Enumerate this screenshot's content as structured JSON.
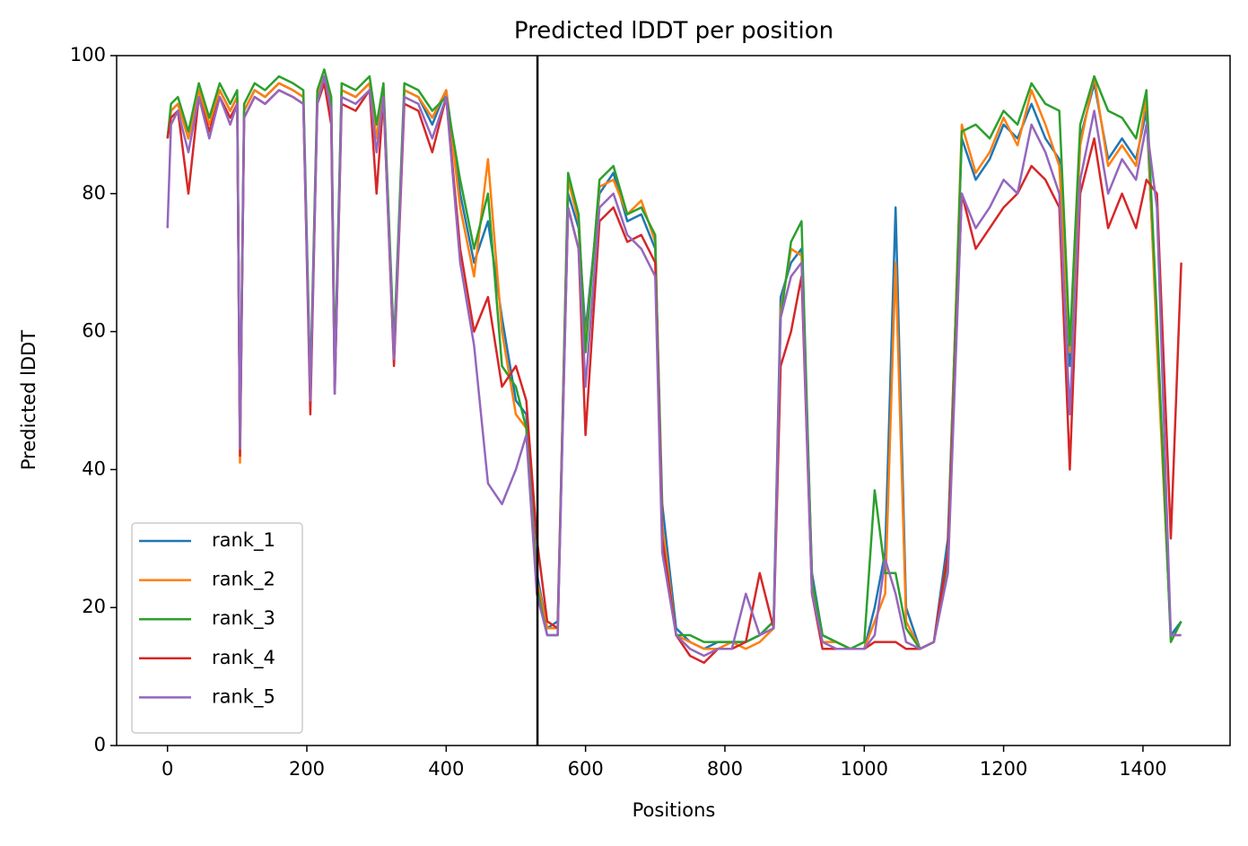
{
  "chart_data": {
    "type": "line",
    "title": "Predicted lDDT per position",
    "x_label": "Positions",
    "y_label": "Predicted lDDT",
    "x": [
      0,
      5,
      15,
      30,
      45,
      60,
      75,
      90,
      100,
      104,
      110,
      125,
      140,
      160,
      180,
      195,
      205,
      215,
      225,
      235,
      240,
      250,
      270,
      290,
      300,
      310,
      325,
      340,
      360,
      380,
      400,
      420,
      440,
      460,
      480,
      500,
      515,
      530,
      545,
      560,
      575,
      590,
      600,
      620,
      640,
      660,
      680,
      700,
      710,
      730,
      750,
      770,
      790,
      810,
      830,
      850,
      870,
      880,
      895,
      910,
      925,
      940,
      960,
      980,
      1000,
      1015,
      1030,
      1045,
      1060,
      1080,
      1100,
      1120,
      1140,
      1160,
      1180,
      1200,
      1220,
      1240,
      1260,
      1280,
      1295,
      1310,
      1330,
      1350,
      1370,
      1390,
      1405,
      1420,
      1440,
      1455
    ],
    "series": [
      {
        "name": "rank_1",
        "color": "#1f77b4",
        "values": [
          88,
          92,
          93,
          88,
          95,
          90,
          95,
          92,
          94,
          43,
          92,
          95,
          94,
          96,
          95,
          94,
          50,
          94,
          97,
          93,
          52,
          95,
          94,
          96,
          88,
          95,
          56,
          95,
          94,
          90,
          95,
          80,
          70,
          76,
          62,
          50,
          48,
          25,
          17,
          18,
          80,
          75,
          60,
          80,
          83,
          76,
          77,
          72,
          35,
          17,
          15,
          14,
          15,
          15,
          15,
          16,
          18,
          65,
          70,
          72,
          25,
          16,
          15,
          14,
          14,
          20,
          28,
          78,
          20,
          14,
          15,
          30,
          88,
          82,
          85,
          90,
          88,
          93,
          88,
          85,
          55,
          88,
          96,
          85,
          88,
          85,
          92,
          60,
          16,
          18
        ]
      },
      {
        "name": "rank_2",
        "color": "#ff7f0e",
        "values": [
          88,
          92,
          93,
          88,
          95,
          90,
          95,
          92,
          94,
          41,
          92,
          95,
          94,
          96,
          95,
          94,
          50,
          94,
          97,
          93,
          52,
          95,
          94,
          96,
          88,
          95,
          56,
          95,
          94,
          91,
          95,
          78,
          68,
          85,
          60,
          48,
          46,
          24,
          17,
          17,
          82,
          76,
          58,
          81,
          82,
          77,
          79,
          73,
          32,
          16,
          15,
          14,
          14,
          15,
          14,
          15,
          17,
          63,
          72,
          71,
          24,
          15,
          15,
          14,
          14,
          18,
          22,
          70,
          18,
          14,
          15,
          28,
          90,
          83,
          86,
          91,
          87,
          95,
          90,
          84,
          57,
          87,
          97,
          84,
          87,
          84,
          94,
          58,
          16,
          16
        ]
      },
      {
        "name": "rank_3",
        "color": "#2ca02c",
        "values": [
          88,
          93,
          94,
          89,
          96,
          91,
          96,
          93,
          95,
          44,
          93,
          96,
          95,
          97,
          96,
          95,
          52,
          95,
          98,
          94,
          54,
          96,
          95,
          97,
          90,
          96,
          58,
          96,
          95,
          92,
          94,
          82,
          72,
          80,
          55,
          52,
          46,
          23,
          16,
          16,
          83,
          77,
          57,
          82,
          84,
          77,
          78,
          74,
          30,
          16,
          16,
          15,
          15,
          15,
          15,
          16,
          18,
          62,
          73,
          76,
          24,
          16,
          15,
          14,
          15,
          37,
          25,
          25,
          17,
          14,
          15,
          27,
          89,
          90,
          88,
          92,
          90,
          96,
          93,
          92,
          58,
          90,
          97,
          92,
          91,
          88,
          95,
          62,
          15,
          18
        ]
      },
      {
        "name": "rank_4",
        "color": "#d62728",
        "values": [
          88,
          91,
          92,
          80,
          94,
          89,
          94,
          91,
          93,
          42,
          91,
          94,
          93,
          95,
          94,
          93,
          48,
          93,
          96,
          90,
          51,
          93,
          92,
          95,
          80,
          94,
          55,
          93,
          92,
          86,
          94,
          72,
          60,
          65,
          52,
          55,
          50,
          30,
          18,
          17,
          78,
          72,
          45,
          76,
          78,
          73,
          74,
          70,
          30,
          16,
          13,
          12,
          14,
          14,
          15,
          25,
          17,
          55,
          60,
          68,
          22,
          14,
          14,
          14,
          14,
          15,
          15,
          15,
          14,
          14,
          15,
          28,
          80,
          72,
          75,
          78,
          80,
          84,
          82,
          78,
          40,
          80,
          88,
          75,
          80,
          75,
          82,
          80,
          30,
          70
        ]
      },
      {
        "name": "rank_5",
        "color": "#9467bd",
        "values": [
          75,
          90,
          92,
          86,
          94,
          88,
          94,
          90,
          93,
          43,
          91,
          94,
          93,
          95,
          94,
          93,
          50,
          93,
          97,
          92,
          51,
          94,
          93,
          95,
          86,
          94,
          56,
          94,
          93,
          88,
          94,
          70,
          58,
          38,
          35,
          40,
          45,
          22,
          16,
          16,
          78,
          72,
          52,
          78,
          80,
          74,
          72,
          68,
          28,
          16,
          14,
          13,
          14,
          14,
          22,
          16,
          17,
          62,
          68,
          70,
          22,
          15,
          14,
          14,
          14,
          16,
          27,
          22,
          15,
          14,
          15,
          25,
          80,
          75,
          78,
          82,
          80,
          90,
          86,
          80,
          48,
          82,
          92,
          80,
          85,
          82,
          90,
          78,
          16,
          16
        ]
      }
    ],
    "vline": 531,
    "vline_color": "#000000",
    "xlim": [
      -73,
      1525
    ],
    "ylim": [
      0,
      100
    ],
    "xticks": [
      0,
      200,
      400,
      600,
      800,
      1000,
      1200,
      1400
    ],
    "yticks": [
      0,
      20,
      40,
      60,
      80,
      100
    ],
    "grid": false,
    "legend": "lower left"
  }
}
